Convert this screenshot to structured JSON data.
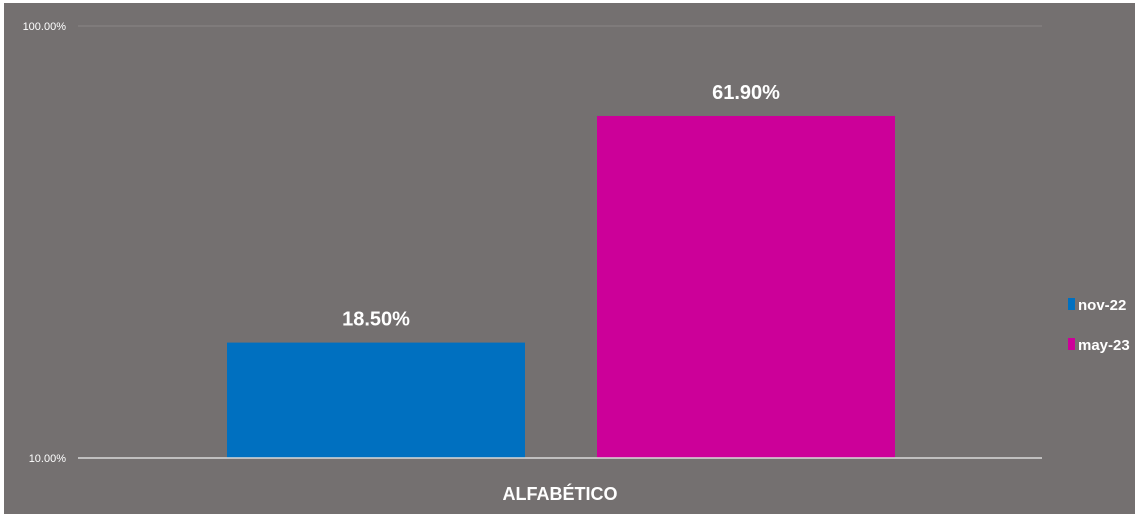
{
  "chart_data": {
    "type": "bar",
    "categories": [
      "ALFABÉTICO"
    ],
    "series": [
      {
        "name": "nov-22",
        "values": [
          18.5
        ],
        "label": "18.50%",
        "color": "#0070c0"
      },
      {
        "name": "may-23",
        "values": [
          61.9
        ],
        "label": "61.90%",
        "color": "#cc0099"
      }
    ],
    "y_scale": "log",
    "ylim": [
      10,
      100
    ],
    "y_ticks": [
      {
        "value": 10,
        "label": "10.00%"
      },
      {
        "value": 100,
        "label": "100.00%"
      }
    ],
    "grid": true,
    "legend_position": "right",
    "background_color": "#747070",
    "axis_color": "#d9d9d9",
    "grid_color": "#8a8686"
  }
}
